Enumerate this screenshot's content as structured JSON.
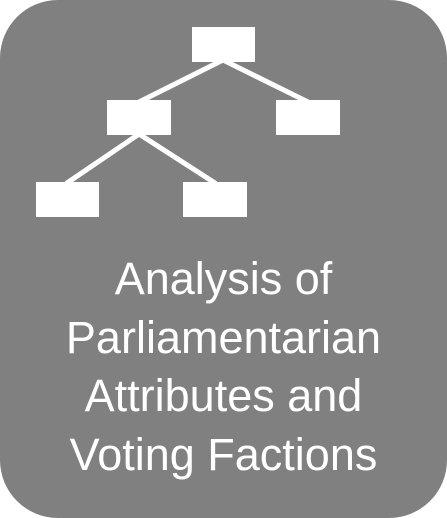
{
  "tile": {
    "background_color": "#808080",
    "foreground_color": "#ffffff",
    "icon": "tree-hierarchy-icon",
    "caption_lines": [
      "Analysis of",
      "Parliamentarian",
      "Attributes and",
      "Voting Factions"
    ]
  }
}
